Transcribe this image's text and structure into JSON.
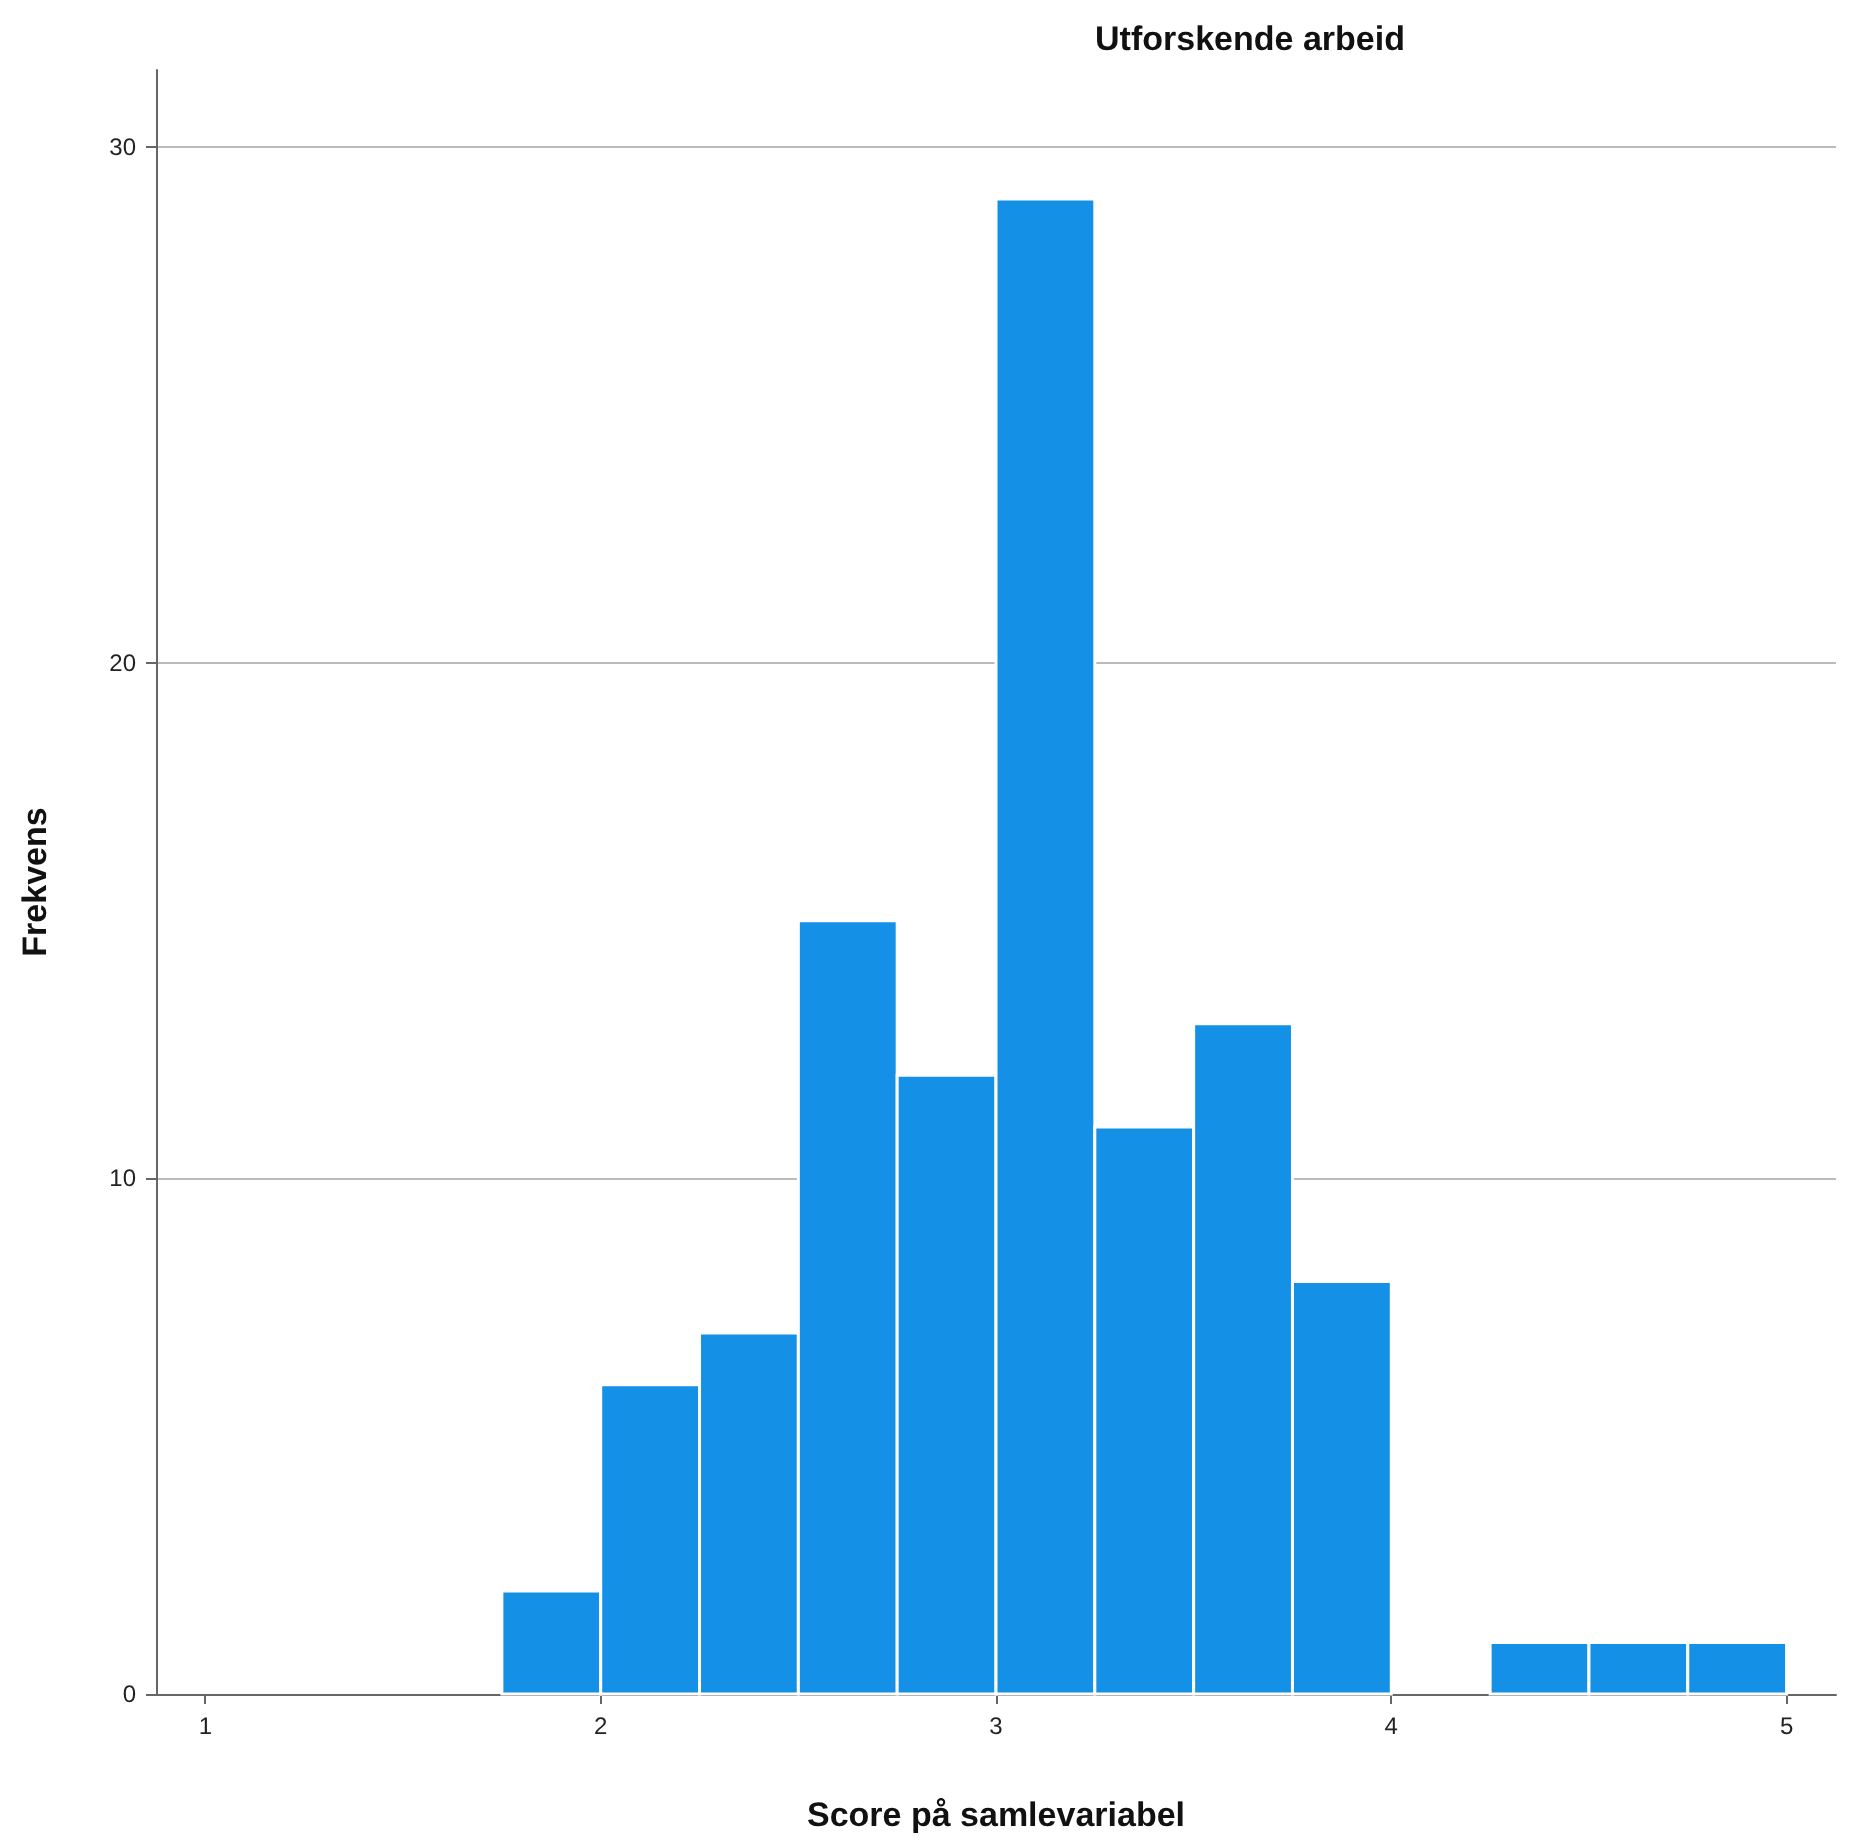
{
  "chart_data": {
    "type": "histogram",
    "title": "Utforskende arbeid",
    "xlabel": "Score på samlevariabel",
    "ylabel": "Frekvens",
    "bins": [
      1.75,
      2.0,
      2.25,
      2.5,
      2.75,
      3.0,
      3.25,
      3.5,
      3.75,
      4.0,
      4.25,
      4.5,
      4.75,
      5.0
    ],
    "values": [
      2,
      6,
      7,
      15,
      12,
      29,
      11,
      13,
      8,
      0,
      1,
      1,
      1
    ],
    "color": "#1490e6",
    "xlim": [
      0.875,
      5.125
    ],
    "xticks": [
      1,
      2,
      3,
      4,
      5
    ],
    "ylim": [
      0,
      31.5
    ],
    "yticks": [
      0,
      10,
      20,
      30
    ],
    "grid": "y",
    "legend": false
  }
}
